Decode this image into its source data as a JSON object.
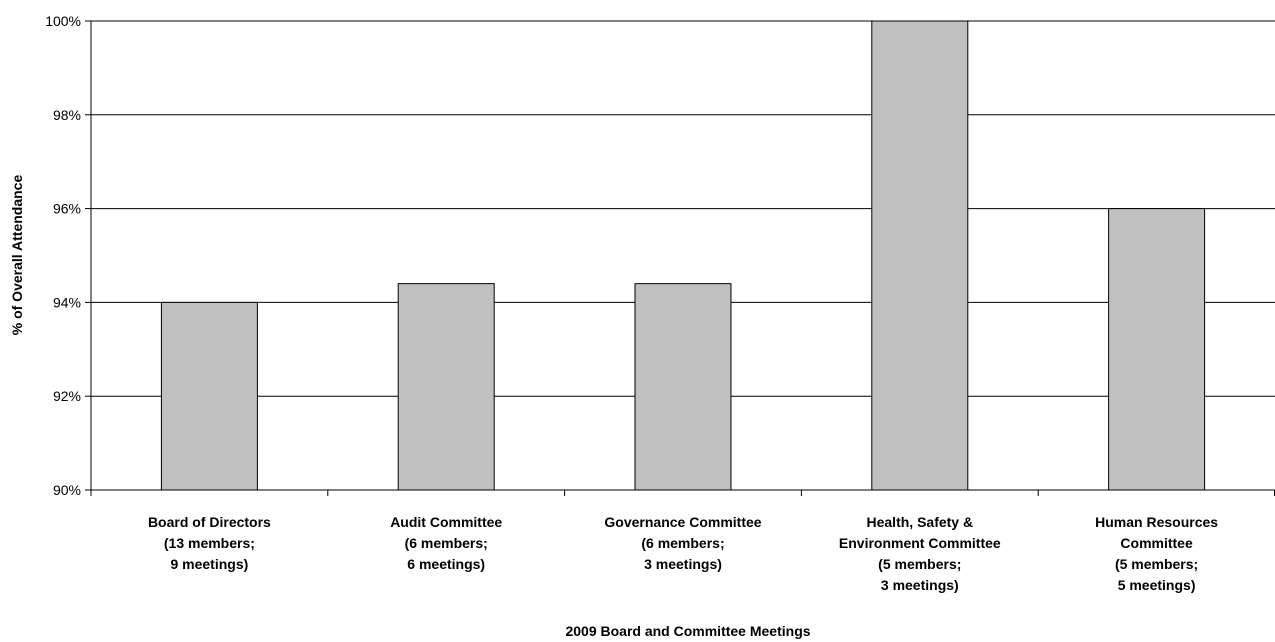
{
  "chart_data": {
    "type": "bar",
    "title": "",
    "xlabel": "2009 Board and Committee Meetings",
    "ylabel": "% of Overall Attendance",
    "ylim": [
      90,
      100
    ],
    "yticks": [
      90,
      92,
      94,
      96,
      98,
      100
    ],
    "ytick_labels": [
      "90%",
      "92%",
      "94%",
      "96%",
      "98%",
      "100%"
    ],
    "grid": true,
    "legend": "none",
    "bar_color": "#c0c0c0",
    "bar_edge_color": "#000000",
    "categories": [
      [
        "Board of Directors",
        "(13 members;",
        "9 meetings)"
      ],
      [
        "Audit Committee",
        "(6 members;",
        "6 meetings)"
      ],
      [
        "Governance Committee",
        "(6 members;",
        "3 meetings)"
      ],
      [
        "Health, Safety &",
        "Environment Committee",
        "(5 members;",
        "3 meetings)"
      ],
      [
        "Human Resources",
        "Committee",
        "(5 members;",
        "5 meetings)"
      ]
    ],
    "values": [
      94.0,
      94.4,
      94.4,
      100.0,
      96.0
    ]
  }
}
